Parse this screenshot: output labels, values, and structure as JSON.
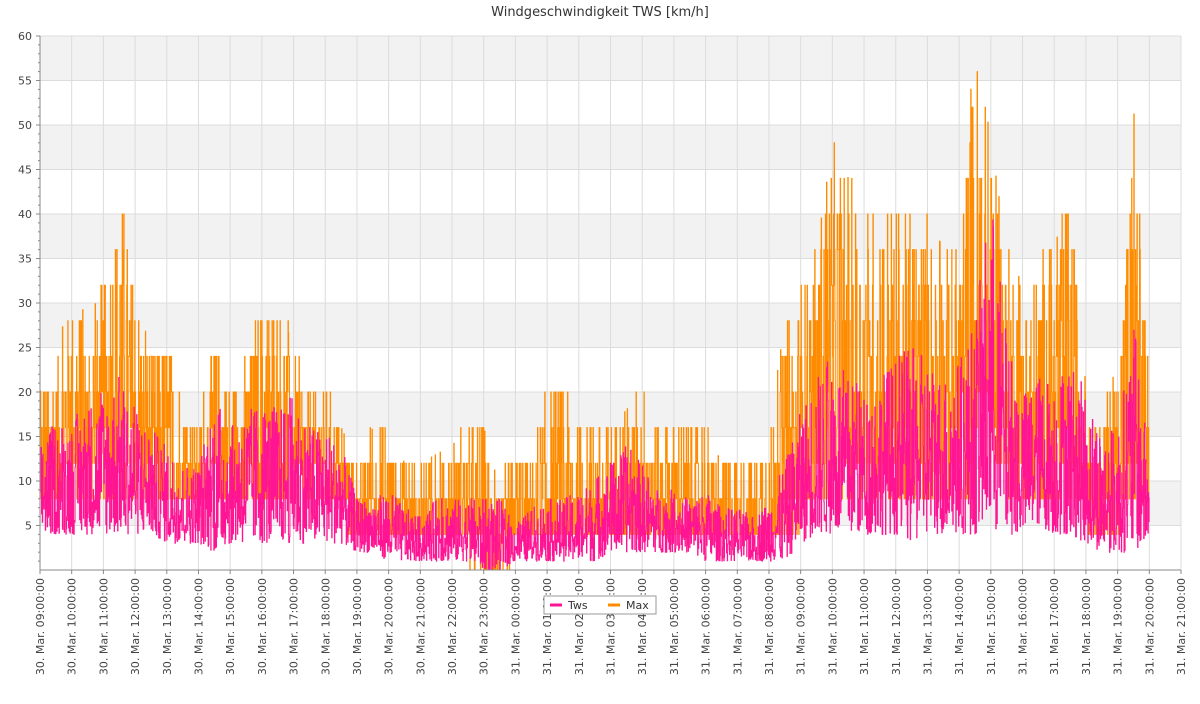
{
  "chart_data": {
    "type": "line",
    "title": "Windgeschwindigkeit TWS [km/h]",
    "xlabel": "",
    "ylabel": "",
    "ylim": [
      0,
      60
    ],
    "y_ticks": [
      5,
      10,
      15,
      20,
      25,
      30,
      35,
      40,
      45,
      50,
      55,
      60
    ],
    "x_ticks": [
      "30. Mar. 09:00:00",
      "30. Mar. 10:00:00",
      "30. Mar. 11:00:00",
      "30. Mar. 12:00:00",
      "30. Mar. 13:00:00",
      "30. Mar. 14:00:00",
      "30. Mar. 15:00:00",
      "30. Mar. 16:00:00",
      "30. Mar. 17:00:00",
      "30. Mar. 18:00:00",
      "30. Mar. 19:00:00",
      "30. Mar. 20:00:00",
      "30. Mar. 21:00:00",
      "30. Mar. 22:00:00",
      "30. Mar. 23:00:00",
      "31. Mar. 00:00:00",
      "31. Mar. 01:00:00",
      "31. Mar. 02:00:00",
      "31. Mar. 03:00:00",
      "31. Mar. 04:00:00",
      "31. Mar. 05:00:00",
      "31. Mar. 06:00:00",
      "31. Mar. 07:00:00",
      "31. Mar. 08:00:00",
      "31. Mar. 09:00:00",
      "31. Mar. 10:00:00",
      "31. Mar. 11:00:00",
      "31. Mar. 12:00:00",
      "31. Mar. 13:00:00",
      "31. Mar. 14:00:00",
      "31. Mar. 15:00:00",
      "31. Mar. 16:00:00",
      "31. Mar. 17:00:00",
      "31. Mar. 18:00:00",
      "31. Mar. 19:00:00",
      "31. Mar. 20:00:00",
      "31. Mar. 21:00:00"
    ],
    "x_hours_range": [
      0,
      36
    ],
    "data_end_hour": 35.0,
    "grid": true,
    "legend_position": "bottom-center",
    "series": [
      {
        "name": "Tws",
        "color": "#ff1493",
        "hours": [
          0,
          0.5,
          1,
          1.5,
          2,
          2.5,
          3,
          3.5,
          4,
          4.5,
          5,
          5.5,
          6,
          6.5,
          7,
          7.5,
          8,
          8.5,
          9,
          9.5,
          10,
          10.5,
          11,
          11.5,
          12,
          12.5,
          13,
          13.5,
          14,
          14.5,
          15,
          15.5,
          16,
          16.5,
          17,
          17.5,
          18,
          18.5,
          19,
          19.5,
          20,
          20.5,
          21,
          21.5,
          22,
          22.5,
          23,
          23.5,
          24,
          24.5,
          25,
          25.5,
          26,
          26.5,
          27,
          27.5,
          28,
          28.5,
          29,
          29.5,
          30,
          30.5,
          31,
          31.5,
          32,
          32.5,
          33,
          33.5,
          34,
          34.5,
          35
        ],
        "low": [
          4,
          4,
          4,
          4,
          4,
          4,
          4,
          4,
          3,
          3,
          3,
          2,
          3,
          3,
          3,
          3,
          3,
          3,
          3,
          3,
          2,
          2,
          1,
          1,
          1,
          1,
          1,
          1,
          0,
          0,
          1,
          1,
          1,
          1,
          1,
          1,
          2,
          2,
          2,
          2,
          2,
          2,
          1,
          1,
          1,
          1,
          1,
          1,
          3,
          4,
          4,
          4,
          4,
          4,
          4,
          3,
          4,
          4,
          4,
          4,
          4,
          4,
          4,
          5,
          4,
          4,
          3,
          2,
          2,
          2,
          3
        ],
        "high": [
          14,
          17,
          17,
          19,
          20,
          22,
          18,
          16,
          14,
          12,
          12,
          20,
          16,
          18,
          19,
          18,
          20,
          16,
          16,
          14,
          8,
          8,
          9,
          7,
          6,
          8,
          8,
          8,
          8,
          8,
          5,
          7,
          8,
          8,
          9,
          10,
          12,
          14,
          12,
          9,
          9,
          8,
          9,
          7,
          7,
          6,
          8,
          12,
          18,
          22,
          24,
          22,
          20,
          22,
          24,
          25,
          24,
          22,
          24,
          28,
          43,
          26,
          20,
          22,
          22,
          24,
          20,
          16,
          16,
          28,
          12
        ]
      },
      {
        "name": "Max",
        "color": "#ff8c00",
        "hours": [
          0,
          0.5,
          1,
          1.5,
          2,
          2.5,
          3,
          3.5,
          4,
          4.5,
          5,
          5.5,
          6,
          6.5,
          7,
          7.5,
          8,
          8.5,
          9,
          9.5,
          10,
          10.5,
          11,
          11.5,
          12,
          12.5,
          13,
          13.5,
          14,
          14.5,
          15,
          15.5,
          16,
          16.5,
          17,
          17.5,
          18,
          18.5,
          19,
          19.5,
          20,
          20.5,
          21,
          21.5,
          22,
          22.5,
          23,
          23.5,
          24,
          24.5,
          25,
          25.5,
          26,
          26.5,
          27,
          27.5,
          28,
          28.5,
          29,
          29.5,
          30,
          30.5,
          31,
          31.5,
          32,
          32.5,
          33,
          33.5,
          34,
          34.5,
          35
        ],
        "low": [
          8,
          8,
          8,
          8,
          8,
          8,
          8,
          8,
          6,
          6,
          6,
          6,
          6,
          6,
          6,
          6,
          6,
          6,
          6,
          6,
          4,
          4,
          2,
          2,
          2,
          2,
          2,
          2,
          0,
          0,
          2,
          2,
          2,
          2,
          2,
          2,
          4,
          4,
          4,
          4,
          4,
          4,
          2,
          2,
          2,
          2,
          2,
          2,
          6,
          8,
          8,
          8,
          8,
          8,
          8,
          8,
          8,
          8,
          8,
          8,
          12,
          10,
          8,
          8,
          8,
          8,
          6,
          4,
          4,
          6,
          6
        ],
        "high": [
          20,
          24,
          32,
          28,
          32,
          44,
          32,
          24,
          28,
          20,
          16,
          28,
          20,
          24,
          32,
          32,
          24,
          20,
          20,
          16,
          12,
          16,
          16,
          12,
          12,
          13,
          14,
          16,
          16,
          9,
          13,
          12,
          20,
          20,
          16,
          16,
          16,
          18,
          20,
          16,
          16,
          16,
          16,
          12,
          13,
          12,
          16,
          28,
          32,
          36,
          48,
          44,
          40,
          44,
          40,
          40,
          40,
          36,
          38,
          60,
          48,
          36,
          32,
          36,
          36,
          44,
          20,
          16,
          24,
          52,
          20
        ]
      }
    ]
  }
}
